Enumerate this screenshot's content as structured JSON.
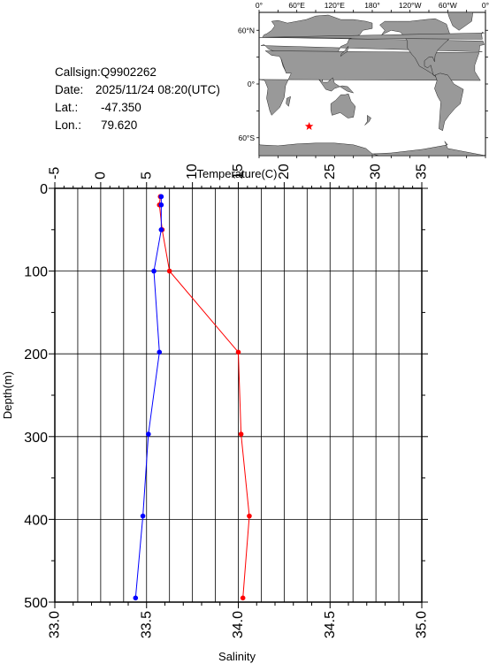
{
  "info": {
    "callsign_label": "Callsign:",
    "callsign": "Q9902262",
    "date_label": "Date:",
    "date": "2025/11/24 08:20(UTC)",
    "lat_label": "Lat.:",
    "lat": "-47.350",
    "lon_label": "Lon.:",
    "lon": "79.620"
  },
  "map": {
    "top_labels": [
      "0°",
      "60°E",
      "120°E",
      "180°",
      "120°W",
      "60°W",
      "0°"
    ],
    "left_labels": [
      "60°N",
      "0°",
      "60°S"
    ],
    "marker": {
      "lat": -47.35,
      "lon": 79.62,
      "color": "#ff0000",
      "shape": "star"
    }
  },
  "chart_data": {
    "type": "line",
    "top_axis": {
      "title": "Temperature(C)",
      "range": [
        -5,
        35
      ],
      "ticks": [
        -5,
        0,
        5,
        10,
        15,
        20,
        25,
        30,
        35
      ]
    },
    "bottom_axis": {
      "title": "Salinity",
      "range": [
        33.0,
        35.0
      ],
      "ticks": [
        "33.0",
        "33.5",
        "34.0",
        "34.5",
        "35.0"
      ]
    },
    "y_axis": {
      "title": "Depth(m)",
      "range": [
        0,
        500
      ],
      "inverted": true,
      "ticks": [
        0,
        100,
        200,
        300,
        400,
        500
      ]
    },
    "grid": true,
    "series": [
      {
        "quantity": "temperature",
        "color": "#ff0000",
        "depth": [
          10,
          20,
          50,
          100,
          198,
          297,
          396,
          495
        ],
        "values": [
          6.5,
          6.4,
          6.7,
          7.5,
          15.0,
          15.3,
          16.2,
          15.5
        ]
      },
      {
        "quantity": "salinity",
        "color": "#0000ff",
        "depth": [
          10,
          20,
          50,
          100,
          198,
          297,
          396,
          495
        ],
        "values": [
          33.58,
          33.58,
          33.58,
          33.54,
          33.57,
          33.51,
          33.48,
          33.44
        ]
      }
    ]
  }
}
